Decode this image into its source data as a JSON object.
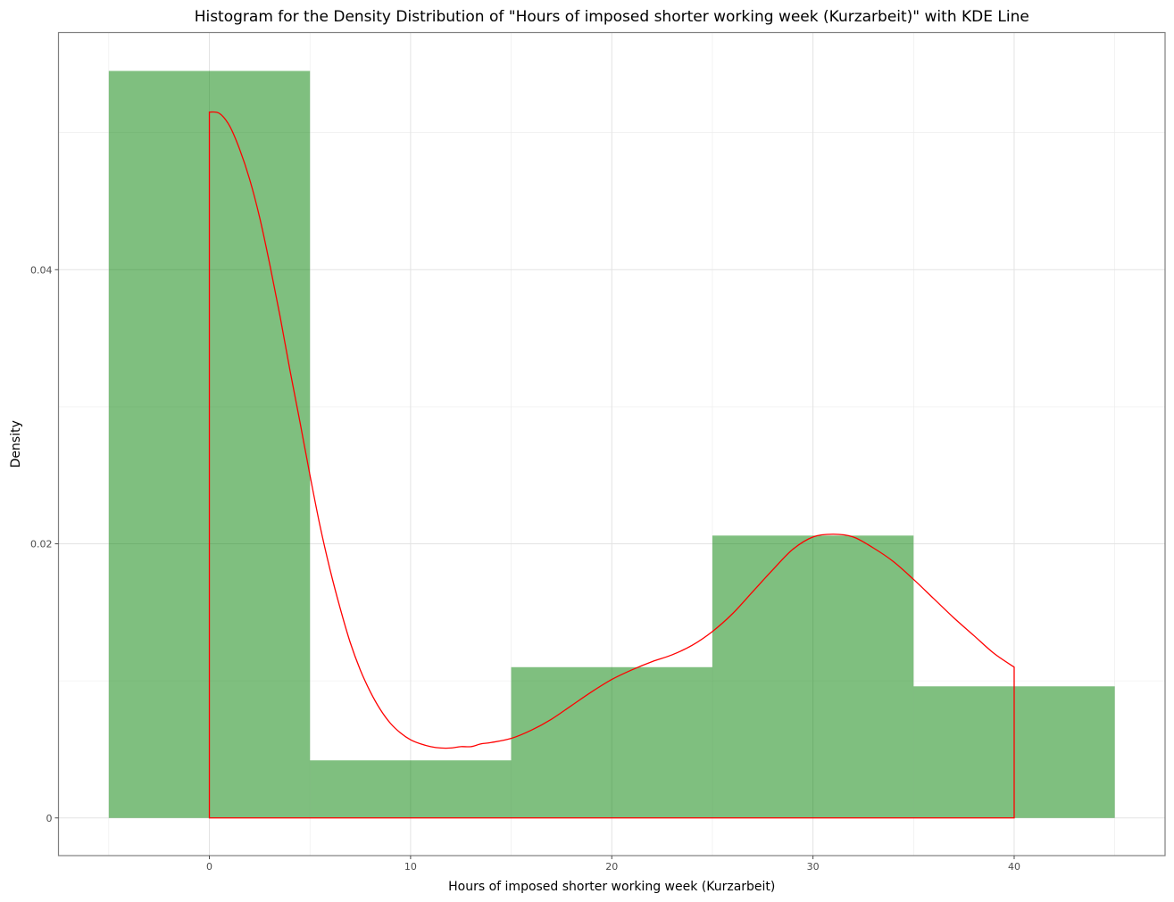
{
  "chart_data": {
    "type": "histogram",
    "title": "Histogram for the Density Distribution of \"Hours of imposed shorter working week (Kurzarbeit)\" with KDE Line",
    "xlabel": "Hours of imposed shorter working week (Kurzarbeit)",
    "ylabel": "Density",
    "xlim": [
      -7.5,
      47.5
    ],
    "ylim": [
      -0.00275,
      0.0573
    ],
    "x_ticks": [
      0,
      10,
      20,
      30,
      40
    ],
    "x_tick_labels": [
      "0",
      "10",
      "20",
      "30",
      "40"
    ],
    "y_ticks": [
      0,
      0.02,
      0.04
    ],
    "y_tick_labels": [
      "0",
      "0.02",
      "0.04"
    ],
    "grid": true,
    "bins": [
      {
        "x0": -5,
        "x1": 5,
        "density": 0.0545
      },
      {
        "x0": 5,
        "x1": 15,
        "density": 0.0042
      },
      {
        "x0": 15,
        "x1": 25,
        "density": 0.011
      },
      {
        "x0": 25,
        "x1": 35,
        "density": 0.0206
      },
      {
        "x0": 35,
        "x1": 45,
        "density": 0.0096
      }
    ],
    "bar_color": "#008000",
    "bar_opacity": 0.5,
    "kde": {
      "color": "#ff0000",
      "x": [
        0,
        0.5,
        1,
        1.5,
        2,
        2.5,
        3,
        3.5,
        4,
        4.5,
        5,
        5.5,
        6,
        6.5,
        7,
        7.5,
        8,
        8.5,
        9,
        9.5,
        10,
        10.5,
        11,
        11.5,
        12,
        12.5,
        13,
        13.5,
        14,
        15,
        16,
        17,
        18,
        19,
        20,
        21,
        22,
        23,
        24,
        25,
        26,
        27,
        28,
        29,
        30,
        31,
        32,
        33,
        34,
        35,
        36,
        37,
        38,
        39,
        40
      ],
      "y": [
        0.0515,
        0.0514,
        0.0505,
        0.0488,
        0.0466,
        0.0438,
        0.0404,
        0.0367,
        0.0327,
        0.0289,
        0.025,
        0.0213,
        0.0181,
        0.0153,
        0.0128,
        0.0108,
        0.0092,
        0.0079,
        0.0069,
        0.0062,
        0.0057,
        0.0054,
        0.0052,
        0.0051,
        0.0051,
        0.0052,
        0.0052,
        0.0054,
        0.0055,
        0.0058,
        0.0064,
        0.0072,
        0.0082,
        0.0092,
        0.0101,
        0.0108,
        0.0114,
        0.0119,
        0.0126,
        0.0136,
        0.0149,
        0.0165,
        0.0181,
        0.0196,
        0.0205,
        0.0207,
        0.0205,
        0.0197,
        0.0187,
        0.0174,
        0.016,
        0.0146,
        0.0133,
        0.012,
        0.011
      ]
    }
  }
}
